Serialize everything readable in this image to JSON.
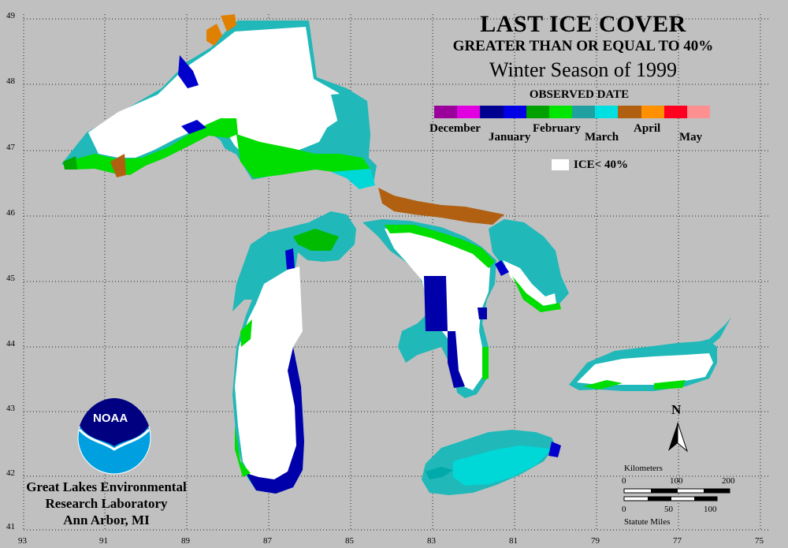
{
  "title": "LAST ICE COVER",
  "subtitle": "GREATER THAN OR EQUAL TO 40%",
  "season": "Winter Season of 1999",
  "legend": {
    "heading": "OBSERVED DATE",
    "months": [
      "December",
      "January",
      "February",
      "March",
      "April",
      "May"
    ],
    "colors": [
      "#9a009a",
      "#e000e0",
      "#000090",
      "#0000e6",
      "#00a000",
      "#00e600",
      "#20a0a0",
      "#00e0e0",
      "#b06010",
      "#ff9000",
      "#ff0020",
      "#ff9090"
    ],
    "ice_label": "ICE< 40%"
  },
  "lon_labels": [
    "93",
    "91",
    "89",
    "87",
    "85",
    "83",
    "81",
    "79",
    "77",
    "75"
  ],
  "lat_labels": [
    "49",
    "48",
    "47",
    "46",
    "45",
    "44",
    "43",
    "42",
    "41"
  ],
  "north_label": "N",
  "scale": {
    "km_label": "Kilometers",
    "km_ticks": [
      "0",
      "100",
      "200"
    ],
    "mi_ticks": [
      "0",
      "50",
      "100"
    ],
    "mi_label": "Statute Miles"
  },
  "logo_text": "NOAA",
  "lab": [
    "Great Lakes Environmental",
    "Research Laboratory",
    "Ann Arbor, MI"
  ]
}
